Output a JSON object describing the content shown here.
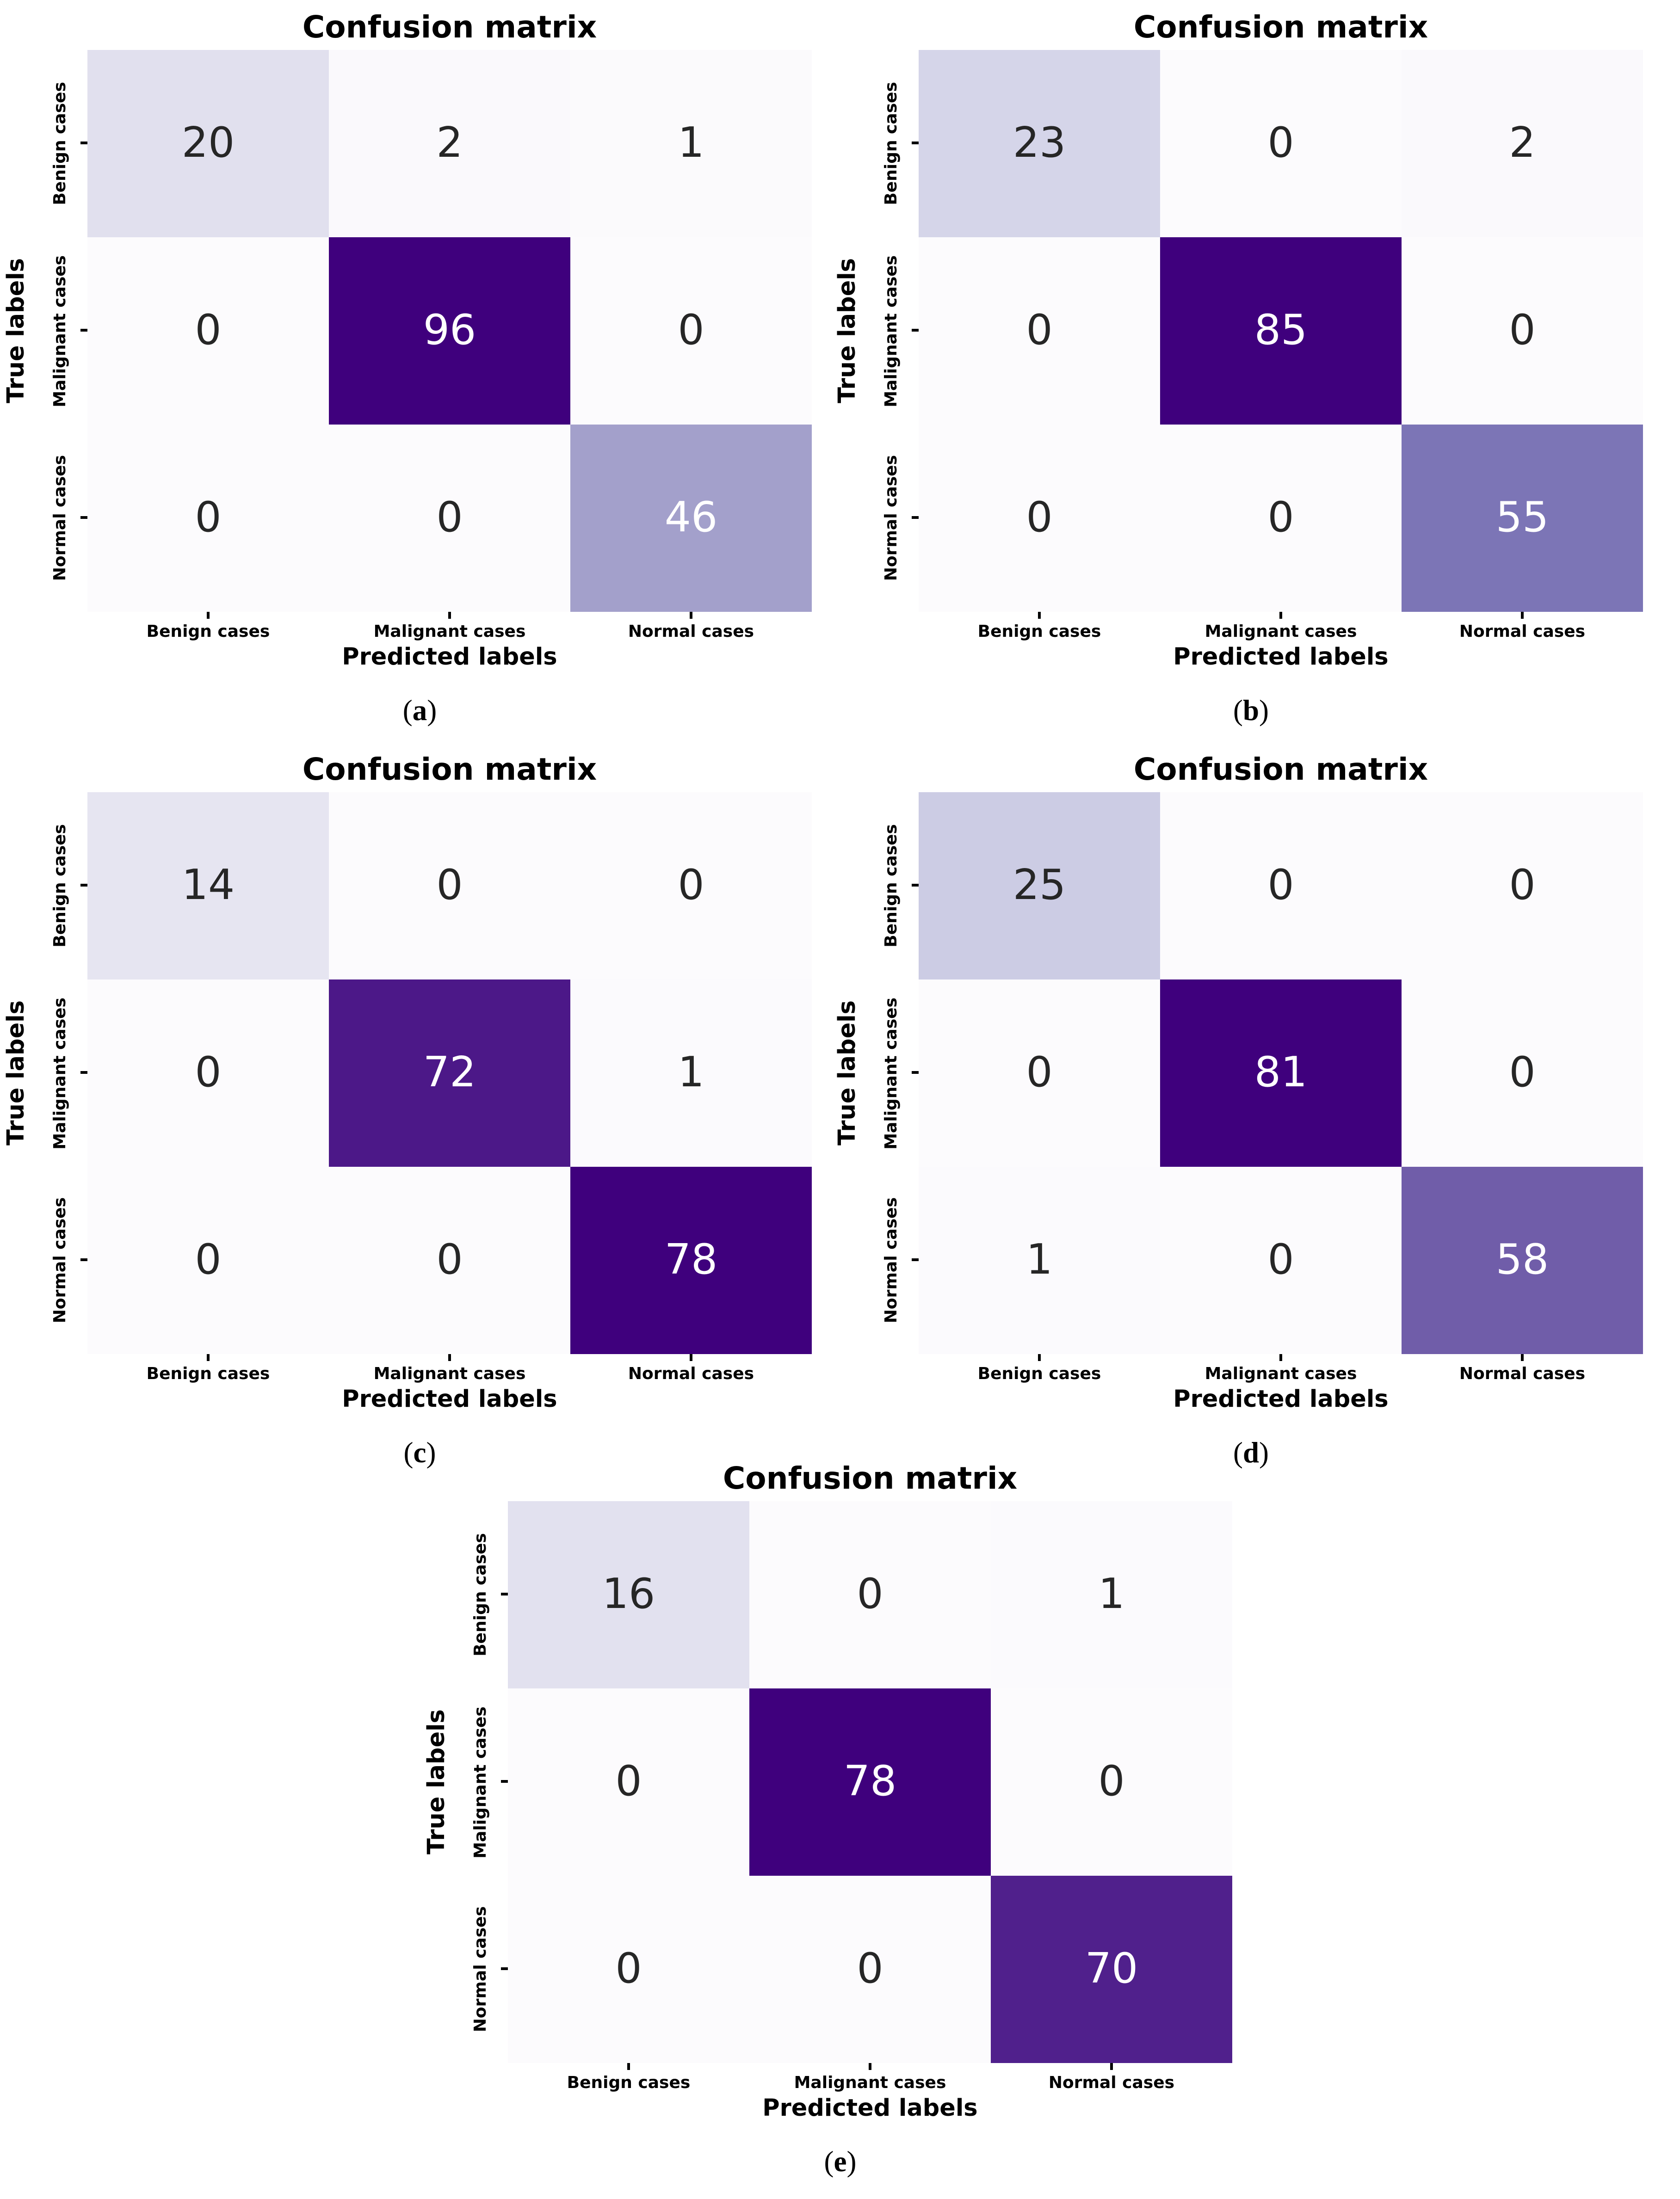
{
  "axis": {
    "title": "Confusion matrix",
    "xlabel": "Predicted labels",
    "ylabel": "True labels",
    "categories": [
      "Benign cases",
      "Malignant cases",
      "Normal cases"
    ]
  },
  "caption_style": {
    "open": "(",
    "close": ")"
  },
  "colors": {
    "page_background": "#ffffff",
    "dark_text": "#262626",
    "light_text": "#ffffff",
    "colormap_min": "#fcfbfd",
    "colormap_max": "#3f007d"
  },
  "figures": [
    {
      "letter": "a",
      "cells": [
        {
          "v": "20",
          "bg": "#e1e0ee",
          "fg": "#262626"
        },
        {
          "v": "2",
          "bg": "#faf9fc",
          "fg": "#262626"
        },
        {
          "v": "1",
          "bg": "#fbfafc",
          "fg": "#262626"
        },
        {
          "v": "0",
          "bg": "#fcfbfd",
          "fg": "#262626"
        },
        {
          "v": "96",
          "bg": "#3f007d",
          "fg": "#ffffff"
        },
        {
          "v": "0",
          "bg": "#fcfbfd",
          "fg": "#262626"
        },
        {
          "v": "0",
          "bg": "#fcfbfd",
          "fg": "#262626"
        },
        {
          "v": "0",
          "bg": "#fcfbfd",
          "fg": "#262626"
        },
        {
          "v": "46",
          "bg": "#a3a0cb",
          "fg": "#ffffff"
        }
      ]
    },
    {
      "letter": "b",
      "cells": [
        {
          "v": "23",
          "bg": "#d5d5e9",
          "fg": "#262626"
        },
        {
          "v": "0",
          "bg": "#fcfbfd",
          "fg": "#262626"
        },
        {
          "v": "2",
          "bg": "#faf9fc",
          "fg": "#262626"
        },
        {
          "v": "0",
          "bg": "#fcfbfd",
          "fg": "#262626"
        },
        {
          "v": "85",
          "bg": "#3f007d",
          "fg": "#ffffff"
        },
        {
          "v": "0",
          "bg": "#fcfbfd",
          "fg": "#262626"
        },
        {
          "v": "0",
          "bg": "#fcfbfd",
          "fg": "#262626"
        },
        {
          "v": "0",
          "bg": "#fcfbfd",
          "fg": "#262626"
        },
        {
          "v": "55",
          "bg": "#7c75b6",
          "fg": "#ffffff"
        }
      ]
    },
    {
      "letter": "c",
      "cells": [
        {
          "v": "14",
          "bg": "#e6e5f1",
          "fg": "#262626"
        },
        {
          "v": "0",
          "bg": "#fcfbfd",
          "fg": "#262626"
        },
        {
          "v": "0",
          "bg": "#fcfbfd",
          "fg": "#262626"
        },
        {
          "v": "0",
          "bg": "#fcfbfd",
          "fg": "#262626"
        },
        {
          "v": "72",
          "bg": "#4c1888",
          "fg": "#ffffff"
        },
        {
          "v": "1",
          "bg": "#fbfafd",
          "fg": "#262626"
        },
        {
          "v": "0",
          "bg": "#fcfbfd",
          "fg": "#262626"
        },
        {
          "v": "0",
          "bg": "#fcfbfd",
          "fg": "#262626"
        },
        {
          "v": "78",
          "bg": "#3f007d",
          "fg": "#ffffff"
        }
      ]
    },
    {
      "letter": "d",
      "cells": [
        {
          "v": "25",
          "bg": "#cccce4",
          "fg": "#262626"
        },
        {
          "v": "0",
          "bg": "#fcfbfd",
          "fg": "#262626"
        },
        {
          "v": "0",
          "bg": "#fcfbfd",
          "fg": "#262626"
        },
        {
          "v": "0",
          "bg": "#fcfbfd",
          "fg": "#262626"
        },
        {
          "v": "81",
          "bg": "#3f007d",
          "fg": "#ffffff"
        },
        {
          "v": "0",
          "bg": "#fcfbfd",
          "fg": "#262626"
        },
        {
          "v": "1",
          "bg": "#fbfafd",
          "fg": "#262626"
        },
        {
          "v": "0",
          "bg": "#fcfbfd",
          "fg": "#262626"
        },
        {
          "v": "58",
          "bg": "#705da9",
          "fg": "#ffffff"
        }
      ]
    },
    {
      "letter": "e",
      "cells": [
        {
          "v": "16",
          "bg": "#e2e1ef",
          "fg": "#262626"
        },
        {
          "v": "0",
          "bg": "#fcfbfd",
          "fg": "#262626"
        },
        {
          "v": "1",
          "bg": "#fbfafd",
          "fg": "#262626"
        },
        {
          "v": "0",
          "bg": "#fcfbfd",
          "fg": "#262626"
        },
        {
          "v": "78",
          "bg": "#3f007d",
          "fg": "#ffffff"
        },
        {
          "v": "0",
          "bg": "#fcfbfd",
          "fg": "#262626"
        },
        {
          "v": "0",
          "bg": "#fcfbfd",
          "fg": "#262626"
        },
        {
          "v": "0",
          "bg": "#fcfbfd",
          "fg": "#262626"
        },
        {
          "v": "70",
          "bg": "#50208c",
          "fg": "#ffffff"
        }
      ]
    }
  ],
  "chart_data": [
    {
      "type": "heatmap",
      "title": "Confusion matrix",
      "caption": "(a)",
      "xlabel": "Predicted labels",
      "ylabel": "True labels",
      "x_categories": [
        "Benign cases",
        "Malignant cases",
        "Normal cases"
      ],
      "y_categories": [
        "Benign cases",
        "Malignant cases",
        "Normal cases"
      ],
      "matrix": [
        [
          20,
          2,
          1
        ],
        [
          0,
          96,
          0
        ],
        [
          0,
          0,
          46
        ]
      ],
      "colormap": "Purples",
      "legend": "none"
    },
    {
      "type": "heatmap",
      "title": "Confusion matrix",
      "caption": "(b)",
      "xlabel": "Predicted labels",
      "ylabel": "True labels",
      "x_categories": [
        "Benign cases",
        "Malignant cases",
        "Normal cases"
      ],
      "y_categories": [
        "Benign cases",
        "Malignant cases",
        "Normal cases"
      ],
      "matrix": [
        [
          23,
          0,
          2
        ],
        [
          0,
          85,
          0
        ],
        [
          0,
          0,
          55
        ]
      ],
      "colormap": "Purples",
      "legend": "none"
    },
    {
      "type": "heatmap",
      "title": "Confusion matrix",
      "caption": "(c)",
      "xlabel": "Predicted labels",
      "ylabel": "True labels",
      "x_categories": [
        "Benign cases",
        "Malignant cases",
        "Normal cases"
      ],
      "y_categories": [
        "Benign cases",
        "Malignant cases",
        "Normal cases"
      ],
      "matrix": [
        [
          14,
          0,
          0
        ],
        [
          0,
          72,
          1
        ],
        [
          0,
          0,
          78
        ]
      ],
      "colormap": "Purples",
      "legend": "none"
    },
    {
      "type": "heatmap",
      "title": "Confusion matrix",
      "caption": "(d)",
      "xlabel": "Predicted labels",
      "ylabel": "True labels",
      "x_categories": [
        "Benign cases",
        "Malignant cases",
        "Normal cases"
      ],
      "y_categories": [
        "Benign cases",
        "Malignant cases",
        "Normal cases"
      ],
      "matrix": [
        [
          25,
          0,
          0
        ],
        [
          0,
          81,
          0
        ],
        [
          1,
          0,
          58
        ]
      ],
      "colormap": "Purples",
      "legend": "none"
    },
    {
      "type": "heatmap",
      "title": "Confusion matrix",
      "caption": "(e)",
      "xlabel": "Predicted labels",
      "ylabel": "True labels",
      "x_categories": [
        "Benign cases",
        "Malignant cases",
        "Normal cases"
      ],
      "y_categories": [
        "Benign cases",
        "Malignant cases",
        "Normal cases"
      ],
      "matrix": [
        [
          16,
          0,
          1
        ],
        [
          0,
          78,
          0
        ],
        [
          0,
          0,
          70
        ]
      ],
      "colormap": "Purples",
      "legend": "none"
    }
  ]
}
